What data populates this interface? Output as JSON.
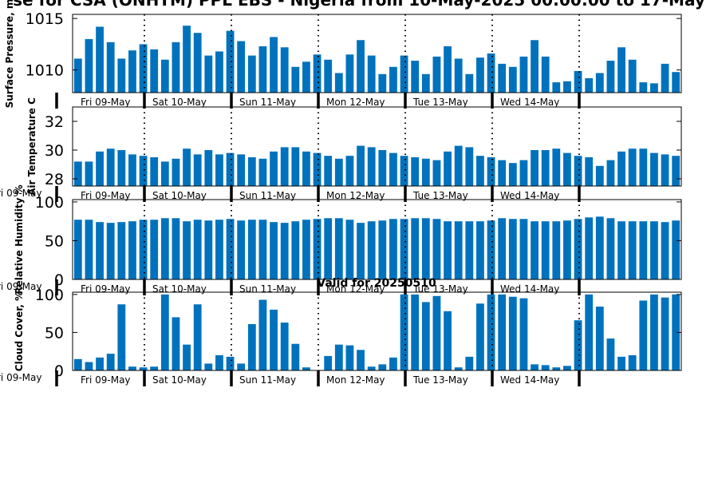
{
  "title": "se for CSA (ONHTM) PPL EBS  - Nigeria from 10-May-2025 00:00:00 to 17-May",
  "colors": {
    "bar": "#0072bd",
    "axis": "#000000",
    "divider": "#000000"
  },
  "chart_data": [
    {
      "type": "bar",
      "ylabel": "Surface Pressure, m",
      "ylim": [
        1007.8,
        1015.4
      ],
      "yticks": [
        1010,
        1015
      ],
      "ytick_labels": [
        "1010",
        "1015"
      ],
      "values": [
        1011.1,
        1013.0,
        1014.2,
        1012.7,
        1011.1,
        1011.9,
        1012.5,
        1012.0,
        1011.0,
        1012.7,
        1014.3,
        1013.6,
        1011.4,
        1011.8,
        1013.8,
        1012.8,
        1011.4,
        1012.3,
        1013.2,
        1012.2,
        1010.3,
        1010.8,
        1011.5,
        1011.0,
        1009.7,
        1011.5,
        1012.9,
        1011.4,
        1009.6,
        1010.3,
        1011.4,
        1010.9,
        1009.6,
        1011.3,
        1012.3,
        1011.1,
        1009.6,
        1011.2,
        1011.6,
        1010.6,
        1010.3,
        1011.3,
        1012.9,
        1011.3,
        1008.8,
        1008.9,
        1009.9,
        1009.2,
        1009.7,
        1010.9,
        1012.2,
        1011.0,
        1008.8,
        1008.7,
        1010.6,
        1009.8
      ]
    },
    {
      "type": "bar",
      "ylabel": "Air Temperature C",
      "ylim": [
        27.5,
        33.0
      ],
      "yticks": [
        28,
        30,
        32
      ],
      "ytick_labels": [
        "28",
        "30",
        "32"
      ],
      "values": [
        29.2,
        29.2,
        29.9,
        30.1,
        30.0,
        29.7,
        29.6,
        29.5,
        29.2,
        29.4,
        30.1,
        29.7,
        30.0,
        29.7,
        29.8,
        29.7,
        29.5,
        29.4,
        29.9,
        30.2,
        30.2,
        29.9,
        29.8,
        29.6,
        29.4,
        29.6,
        30.3,
        30.2,
        30.0,
        29.8,
        29.6,
        29.5,
        29.4,
        29.3,
        29.9,
        30.3,
        30.2,
        29.6,
        29.5,
        29.3,
        29.1,
        29.3,
        30.0,
        30.0,
        30.1,
        29.8,
        29.6,
        29.5,
        28.9,
        29.3,
        29.9,
        30.1,
        30.1,
        29.8,
        29.7,
        29.6
      ]
    },
    {
      "type": "bar",
      "ylabel": "Relative Humidity %",
      "ylim": [
        0,
        103
      ],
      "yticks": [
        0,
        50,
        100
      ],
      "ytick_labels": [
        "0",
        "50",
        "100"
      ],
      "values": [
        77,
        77,
        74,
        73,
        74,
        75,
        77,
        77,
        79,
        79,
        75,
        77,
        76,
        77,
        78,
        76,
        77,
        77,
        74,
        73,
        75,
        77,
        78,
        79,
        79,
        77,
        73,
        75,
        76,
        78,
        78,
        79,
        79,
        78,
        75,
        75,
        75,
        75,
        76,
        79,
        78,
        78,
        75,
        75,
        75,
        76,
        78,
        80,
        81,
        79,
        75,
        75,
        75,
        75,
        74,
        76
      ]
    },
    {
      "type": "bar",
      "title": "Valid for 20250510",
      "ylabel": "Cloud Cover, %",
      "ylim": [
        0,
        103
      ],
      "yticks": [
        0,
        50,
        100
      ],
      "ytick_labels": [
        "0",
        "50",
        "100"
      ],
      "values": [
        15,
        11,
        17,
        22,
        87,
        5,
        4,
        5,
        100,
        70,
        34,
        87,
        9,
        20,
        18,
        9,
        61,
        93,
        80,
        63,
        35,
        4,
        0,
        19,
        34,
        33,
        27,
        5,
        8,
        17,
        100,
        100,
        90,
        98,
        78,
        4,
        18,
        88,
        100,
        100,
        97,
        95,
        8,
        7,
        4,
        6,
        66,
        100,
        84,
        42,
        18,
        20,
        92,
        100,
        96,
        100
      ]
    }
  ],
  "x_axis": {
    "day_labels": [
      "Fri 09-May",
      "Sat 10-May",
      "Sun 11-May",
      "Mon 12-May",
      "Tue 13-May",
      "Wed 14-May"
    ],
    "left_edge_label": "ri 09-May"
  }
}
